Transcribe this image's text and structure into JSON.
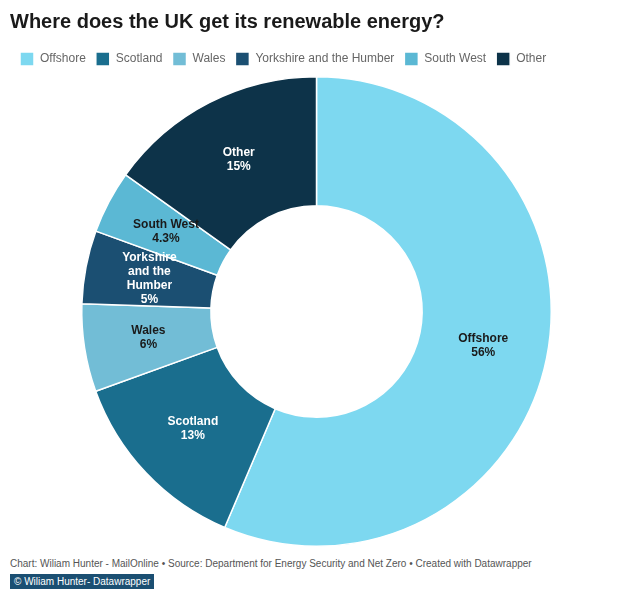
{
  "chart_data": {
    "type": "doughnut",
    "title": "Where does the UK get its renewable energy?",
    "categories": [
      "Offshore",
      "Scotland",
      "Wales",
      "Yorkshire and the Humber",
      "South West",
      "Other"
    ],
    "values": [
      56,
      13,
      6,
      5,
      4.3,
      15
    ],
    "value_labels": [
      "Offshore\n56%",
      "Scotland\n13%",
      "Wales\n6%",
      "Yorkshire\nand the\nHumber\n5%",
      "South West\n4.3%",
      "Other\n15%"
    ],
    "colors": [
      "#7DD8F0",
      "#1A6E8E",
      "#72BDD6",
      "#1B4F72",
      "#5BB8D4",
      "#0D3349"
    ],
    "data_labels": true,
    "legend": "top",
    "annotations": [
      "Chart: Wiliam Hunter - MailOnline • Source: Department for Energy Security and Net Zero • Created with Datawrapper",
      "© Wiliam Hunter- Datawrapper"
    ]
  }
}
